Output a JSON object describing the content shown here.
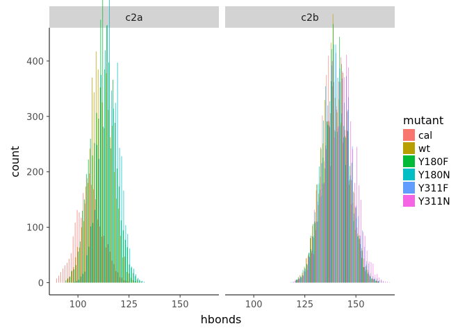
{
  "chart_data": {
    "type": "bar",
    "chart_kind": "faceted histogram (dodged by mutant)",
    "xlabel": "hbonds",
    "ylabel": "count",
    "xlim": [
      86,
      169
    ],
    "ylim": [
      -22,
      460
    ],
    "x_ticks": [
      100,
      125,
      150
    ],
    "y_ticks": [
      0,
      100,
      200,
      300,
      400
    ],
    "grid": false,
    "legend_position": "right",
    "legend": {
      "title": "mutant",
      "entries": [
        {
          "name": "cal",
          "color": "#F8766D"
        },
        {
          "name": "wt",
          "color": "#B79F00"
        },
        {
          "name": "Y180F",
          "color": "#00BA38"
        },
        {
          "name": "Y180N",
          "color": "#00BFC4"
        },
        {
          "name": "Y311F",
          "color": "#619CFF"
        },
        {
          "name": "Y311N",
          "color": "#F564E3"
        }
      ]
    },
    "facets": [
      {
        "label": "c2a",
        "series": [
          {
            "name": "cal",
            "distribution": {
              "mean": 106,
              "sd": 6.5,
              "peak": 160,
              "min": 90,
              "max": 125
            }
          },
          {
            "name": "wt",
            "distribution": {
              "mean": 111,
              "sd": 5.5,
              "peak": 410,
              "min": 95,
              "max": 130
            }
          },
          {
            "name": "Y180F",
            "distribution": {
              "mean": 112,
              "sd": 6.0,
              "peak": 420,
              "min": 94,
              "max": 131
            }
          },
          {
            "name": "Y180N",
            "distribution": {
              "mean": 115,
              "sd": 5.0,
              "peak": 440,
              "min": 98,
              "max": 132
            }
          }
        ]
      },
      {
        "label": "c2b",
        "series": [
          {
            "name": "cal",
            "distribution": {
              "mean": 140,
              "sd": 6.5,
              "peak": 365,
              "min": 121,
              "max": 161
            }
          },
          {
            "name": "wt",
            "distribution": {
              "mean": 140,
              "sd": 6.5,
              "peak": 385,
              "min": 121,
              "max": 161
            }
          },
          {
            "name": "Y180F",
            "distribution": {
              "mean": 140,
              "sd": 6.5,
              "peak": 370,
              "min": 121,
              "max": 161
            }
          },
          {
            "name": "Y180N",
            "distribution": {
              "mean": 140,
              "sd": 6.5,
              "peak": 375,
              "min": 121,
              "max": 161
            }
          },
          {
            "name": "Y311F",
            "distribution": {
              "mean": 141,
              "sd": 6.8,
              "peak": 355,
              "min": 118,
              "max": 163
            }
          },
          {
            "name": "Y311N",
            "distribution": {
              "mean": 142,
              "sd": 7.0,
              "peak": 370,
              "min": 119,
              "max": 166
            }
          }
        ]
      }
    ]
  }
}
